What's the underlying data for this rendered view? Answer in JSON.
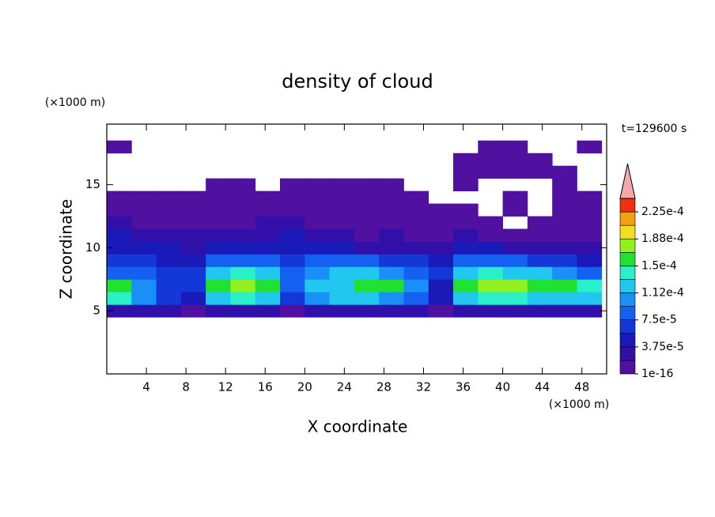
{
  "chart_data": {
    "type": "contour",
    "title": "density of cloud",
    "x_label": "X coordinate",
    "y_label": "Z coordinate",
    "x_unit": "(×1000 m)",
    "y_unit": "(×1000 m)",
    "time_label": "t=129600 s",
    "xlim": [
      0,
      50.5
    ],
    "ylim": [
      0,
      19.8
    ],
    "xticks": [
      4,
      8,
      12,
      16,
      20,
      24,
      28,
      32,
      36,
      40,
      44,
      48
    ],
    "yticks": [
      5,
      10,
      15
    ],
    "x": [
      1.25,
      3.75,
      6.25,
      8.75,
      11.25,
      13.75,
      16.25,
      18.75,
      21.25,
      23.75,
      26.25,
      28.75,
      31.25,
      33.75,
      36.25,
      38.75,
      41.25,
      43.75,
      46.25,
      48.75
    ],
    "y": [
      5,
      6,
      7,
      8,
      9,
      10,
      11,
      12,
      13,
      14,
      15,
      16,
      17,
      18
    ],
    "z": [
      [
        2.8e-05,
        2.8e-05,
        2.8e-05,
        1e-05,
        2.8e-05,
        2.8e-05,
        2.8e-05,
        1e-05,
        2.8e-05,
        2.8e-05,
        2.8e-05,
        2.8e-05,
        2.8e-05,
        1e-05,
        2.8e-05,
        2.8e-05,
        2.8e-05,
        2.8e-05,
        2.8e-05,
        2.8e-05
      ],
      [
        0.00014,
        0.0001,
        6.5e-05,
        4.5e-05,
        0.00012,
        0.00014,
        0.00012,
        6.5e-05,
        0.0001,
        0.00012,
        0.00012,
        0.0001,
        8.5e-05,
        4.5e-05,
        0.00012,
        0.00014,
        0.00014,
        0.00012,
        0.00012,
        0.00012
      ],
      [
        0.00016,
        0.0001,
        6.5e-05,
        6.5e-05,
        0.00016,
        0.000178,
        0.00016,
        8.5e-05,
        0.00012,
        0.00012,
        0.00016,
        0.00016,
        0.0001,
        4.5e-05,
        0.00016,
        0.000178,
        0.000178,
        0.00016,
        0.00016,
        0.00014
      ],
      [
        8.5e-05,
        8.5e-05,
        6.5e-05,
        6.5e-05,
        0.00012,
        0.00014,
        0.00012,
        8.5e-05,
        0.0001,
        0.00012,
        0.00012,
        0.0001,
        8.5e-05,
        6.5e-05,
        0.00012,
        0.00014,
        0.00012,
        0.00012,
        0.0001,
        8.5e-05
      ],
      [
        6.5e-05,
        6.5e-05,
        4.5e-05,
        4.5e-05,
        8.5e-05,
        8.5e-05,
        8.5e-05,
        6.5e-05,
        8.5e-05,
        8.5e-05,
        8.5e-05,
        6.5e-05,
        6.5e-05,
        4.5e-05,
        8.5e-05,
        8.5e-05,
        8.5e-05,
        6.5e-05,
        6.5e-05,
        4.5e-05
      ],
      [
        4.5e-05,
        4.5e-05,
        4.5e-05,
        2.8e-05,
        4.5e-05,
        4.5e-05,
        4.5e-05,
        4.5e-05,
        4.5e-05,
        4.5e-05,
        2.8e-05,
        2.8e-05,
        2.8e-05,
        2.8e-05,
        4.5e-05,
        4.5e-05,
        2.8e-05,
        2.8e-05,
        2.8e-05,
        2.8e-05
      ],
      [
        4.5e-05,
        2.8e-05,
        2.8e-05,
        2.8e-05,
        2.8e-05,
        2.8e-05,
        2.8e-05,
        4.5e-05,
        2.8e-05,
        2.8e-05,
        1e-05,
        2.8e-05,
        1e-05,
        1e-05,
        2.8e-05,
        1e-05,
        1e-05,
        1e-05,
        1e-05,
        1e-05
      ],
      [
        2.8e-05,
        1e-05,
        1e-05,
        1e-05,
        1e-05,
        1e-05,
        2.8e-05,
        2.8e-05,
        1e-05,
        1e-05,
        1e-05,
        1e-05,
        1e-05,
        1e-05,
        1e-05,
        1e-05,
        null,
        1e-05,
        1e-05,
        1e-05
      ],
      [
        1e-05,
        1e-05,
        1e-05,
        1e-05,
        1e-05,
        1e-05,
        1e-05,
        1e-05,
        1e-05,
        1e-05,
        1e-05,
        1e-05,
        1e-05,
        1e-05,
        1e-05,
        null,
        1e-05,
        null,
        1e-05,
        1e-05
      ],
      [
        1e-05,
        1e-05,
        1e-05,
        1e-05,
        1e-05,
        1e-05,
        1e-05,
        1e-05,
        1e-05,
        1e-05,
        1e-05,
        1e-05,
        1e-05,
        null,
        null,
        null,
        1e-05,
        null,
        1e-05,
        1e-05
      ],
      [
        null,
        null,
        null,
        null,
        1e-05,
        1e-05,
        null,
        1e-05,
        1e-05,
        1e-05,
        1e-05,
        1e-05,
        null,
        null,
        1e-05,
        null,
        null,
        null,
        1e-05,
        null
      ],
      [
        null,
        null,
        null,
        null,
        null,
        null,
        null,
        null,
        null,
        null,
        null,
        null,
        null,
        null,
        1e-05,
        1e-05,
        1e-05,
        1e-05,
        1e-05,
        null
      ],
      [
        null,
        null,
        null,
        null,
        null,
        null,
        null,
        null,
        null,
        null,
        null,
        null,
        null,
        null,
        1e-05,
        1e-05,
        1e-05,
        1e-05,
        null,
        null
      ],
      [
        1e-05,
        null,
        null,
        null,
        null,
        null,
        null,
        null,
        null,
        null,
        null,
        null,
        null,
        null,
        null,
        1e-05,
        1e-05,
        null,
        null,
        1e-05
      ]
    ],
    "colorbar": {
      "levels": [
        1e-16,
        1.875e-05,
        3.75e-05,
        5.625e-05,
        7.5e-05,
        9.375e-05,
        0.0001125,
        0.00013125,
        0.00015,
        0.00016875,
        0.0001875,
        0.00020625,
        0.000225,
        0.00024375
      ],
      "colors": [
        "#5010a0",
        "#3010a8",
        "#1a1ab8",
        "#1438d8",
        "#1460f0",
        "#1890f8",
        "#20c8f0",
        "#28f0c8",
        "#20e030",
        "#90f020",
        "#f0e020",
        "#f0a010",
        "#f03010"
      ],
      "extend_color": "#f4a8a8",
      "ticks": [
        {
          "value": 1e-16,
          "label": "1e-16"
        },
        {
          "value": 3.75e-05,
          "label": "3.75e-5"
        },
        {
          "value": 7.5e-05,
          "label": "7.5e-5"
        },
        {
          "value": 0.0001125,
          "label": "1.12e-4"
        },
        {
          "value": 0.00015,
          "label": "1.5e-4"
        },
        {
          "value": 0.0001875,
          "label": "1.88e-4"
        },
        {
          "value": 0.000225,
          "label": "2.25e-4"
        }
      ]
    }
  }
}
